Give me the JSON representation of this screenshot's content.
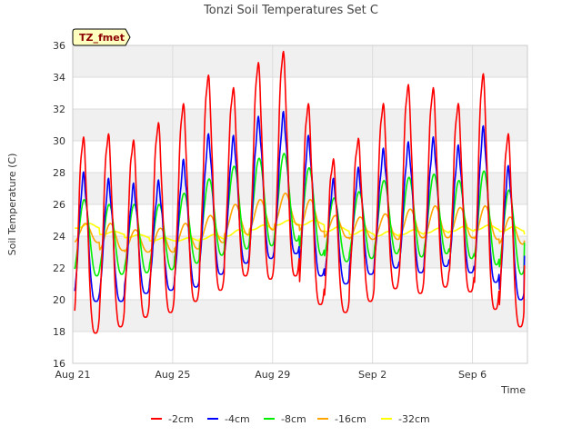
{
  "chart_data": {
    "type": "line",
    "title": "Tonzi Soil Temperatures Set C",
    "xlabel": "Time",
    "ylabel": "Soil Temperature (C)",
    "ylim": [
      16,
      36
    ],
    "yticks": [
      16,
      18,
      20,
      22,
      24,
      26,
      28,
      30,
      32,
      34,
      36
    ],
    "xlim": [
      0,
      18.2
    ],
    "xticks": [
      {
        "label": "Aug 21",
        "day": 0
      },
      {
        "label": "Aug 25",
        "day": 4
      },
      {
        "label": "Aug 29",
        "day": 8
      },
      {
        "label": "Sep 2",
        "day": 12
      },
      {
        "label": "Sep 6",
        "day": 16
      }
    ],
    "grid": true,
    "legend_position": "bottom",
    "badge": "TZ_fmet",
    "day_offset": 0.25,
    "series": [
      {
        "name": "-2cm",
        "color": "#ff0000",
        "min": [
          17.9,
          18.3,
          18.9,
          19.2,
          19.9,
          20.6,
          21.5,
          21.3,
          21.5,
          19.7,
          19.2,
          19.9,
          20.7,
          20.4,
          20.8,
          20.5,
          19.4,
          18.3,
          21.2
        ],
        "max": [
          30.1,
          30.3,
          29.9,
          31.0,
          32.2,
          34.0,
          33.2,
          34.8,
          35.5,
          32.2,
          28.7,
          30.0,
          32.2,
          33.4,
          33.2,
          32.2,
          34.1,
          30.3,
          29.6
        ]
      },
      {
        "name": "-4cm",
        "color": "#0000ff",
        "min": [
          19.9,
          19.9,
          20.4,
          20.6,
          20.8,
          21.6,
          22.3,
          22.6,
          22.9,
          21.5,
          21.0,
          21.6,
          22.0,
          21.7,
          22.1,
          21.7,
          21.1,
          20.0,
          22.3
        ],
        "max": [
          27.7,
          27.3,
          27.0,
          27.2,
          28.5,
          30.1,
          30.0,
          31.2,
          31.5,
          30.0,
          27.3,
          28.0,
          29.2,
          29.6,
          29.9,
          29.4,
          30.6,
          28.1,
          27.9
        ]
      },
      {
        "name": "-8cm",
        "color": "#00ee00",
        "min": [
          21.5,
          21.6,
          21.7,
          21.9,
          22.3,
          22.8,
          23.2,
          23.4,
          23.7,
          22.8,
          22.4,
          22.6,
          22.9,
          22.7,
          22.9,
          22.6,
          22.2,
          21.6,
          23.3
        ],
        "max": [
          26.3,
          26.0,
          26.0,
          26.0,
          26.7,
          27.6,
          28.4,
          28.9,
          29.2,
          28.3,
          26.4,
          26.8,
          27.5,
          27.7,
          27.9,
          27.5,
          28.1,
          26.9,
          26.5
        ]
      },
      {
        "name": "-16cm",
        "color": "#ffa500",
        "min": [
          23.6,
          23.1,
          23.0,
          23.0,
          23.2,
          23.6,
          24.1,
          24.4,
          24.7,
          24.3,
          23.9,
          23.8,
          23.8,
          23.9,
          23.9,
          23.9,
          23.8,
          23.5,
          23.7
        ],
        "max": [
          24.8,
          24.8,
          24.4,
          24.5,
          24.8,
          25.3,
          26.0,
          26.3,
          26.7,
          26.3,
          25.3,
          25.2,
          25.4,
          25.7,
          25.9,
          25.8,
          25.9,
          25.2,
          24.7
        ]
      },
      {
        "name": "-32cm",
        "color": "#ffff00",
        "min": [
          24.5,
          24.1,
          23.9,
          23.7,
          23.7,
          23.8,
          24.0,
          24.4,
          24.7,
          24.7,
          24.3,
          24.1,
          24.0,
          24.1,
          24.2,
          24.3,
          24.4,
          24.3,
          24.1
        ],
        "max": [
          24.8,
          24.3,
          24.1,
          23.9,
          23.9,
          24.1,
          24.4,
          24.7,
          25.0,
          25.0,
          24.6,
          24.4,
          24.3,
          24.4,
          24.5,
          24.6,
          24.7,
          24.6,
          24.3
        ]
      }
    ]
  }
}
